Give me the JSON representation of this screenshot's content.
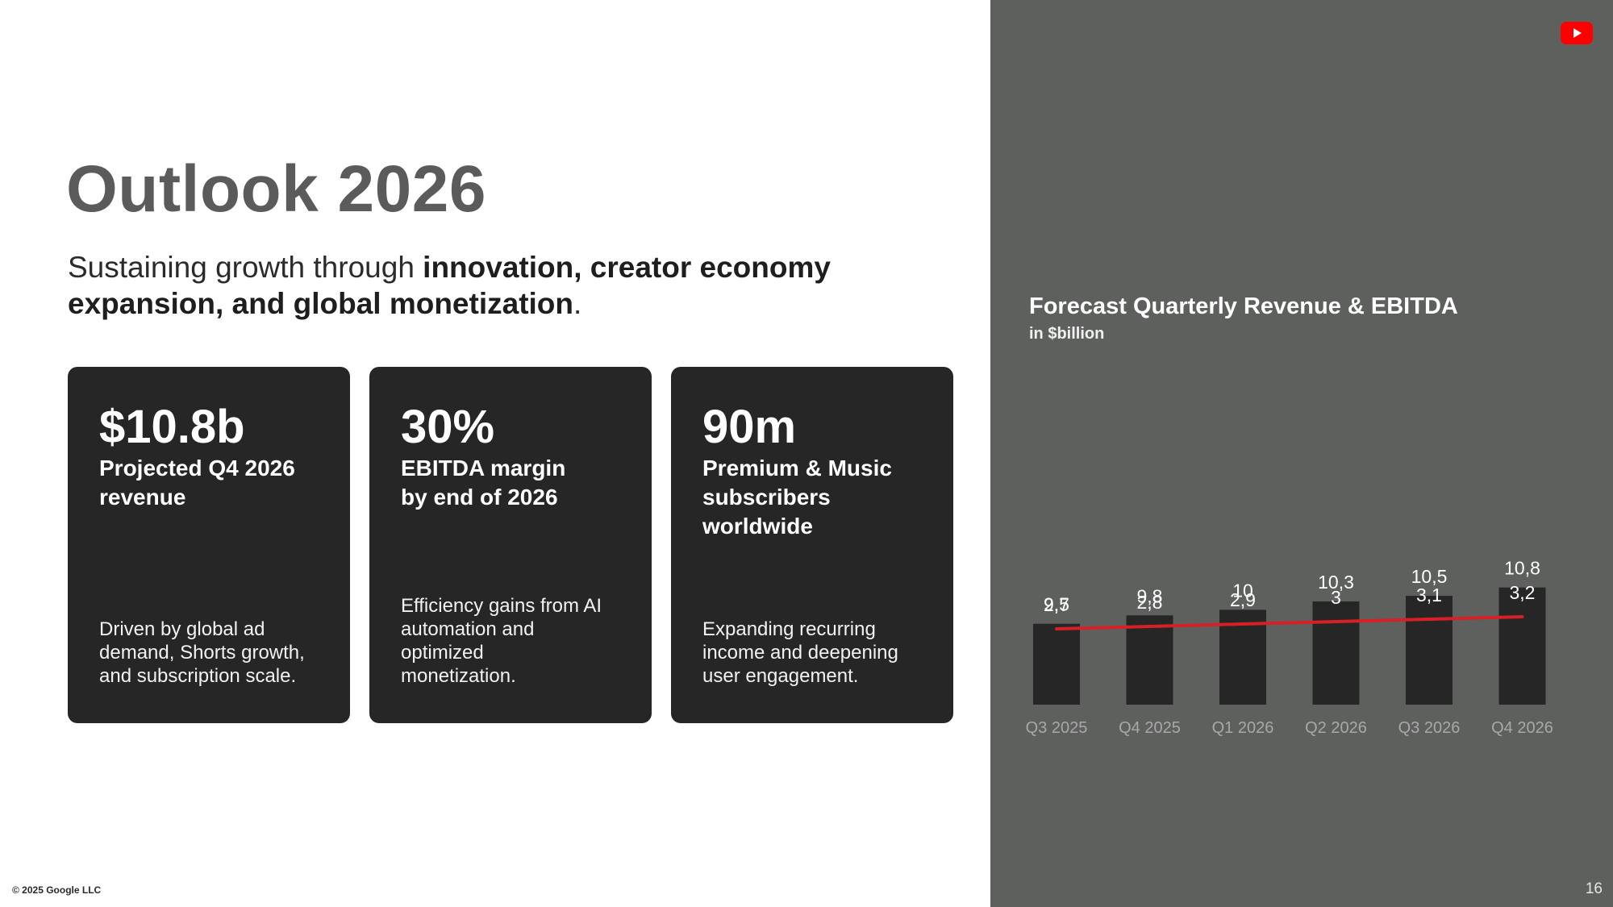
{
  "header": {
    "title": "Outlook 2026",
    "subtitle_plain_1": "Sustaining growth through ",
    "subtitle_bold": "innovation, creator economy expansion, and global monetization",
    "subtitle_plain_2": "."
  },
  "cards": [
    {
      "value": "$10.8b",
      "label": "Projected Q4 2026 revenue",
      "description": "Driven by global ad demand, Shorts growth, and subscription scale."
    },
    {
      "value": "30%",
      "label": "EBITDA margin by end of 2026",
      "description": "Efficiency gains from AI automation and optimized monetization."
    },
    {
      "value": "90m",
      "label": "Premium & Music subscribers worldwide",
      "description": "Expanding recurring income and deepening user engagement."
    }
  ],
  "footer": {
    "copyright": "© 2025 Google LLC",
    "page_number": "16"
  },
  "icons": {
    "logo": "youtube-play-icon"
  },
  "colors": {
    "panel": "#5e605e",
    "bar": "#262626",
    "line": "#d81f26",
    "logo": "#ff0000"
  },
  "chart_data": {
    "type": "bar",
    "title": "Forecast Quarterly Revenue & EBITDA",
    "subtitle": "in $billion",
    "categories": [
      "Q3 2025",
      "Q4 2025",
      "Q1 2026",
      "Q2 2026",
      "Q3 2026",
      "Q4 2026"
    ],
    "series": [
      {
        "type": "bar",
        "values": [
          9.5,
          9.8,
          10,
          10.3,
          10.5,
          10.8
        ],
        "labels": [
          "9,5",
          "9,8",
          "10",
          "10,3",
          "10,5",
          "10,8"
        ]
      },
      {
        "type": "line",
        "values": [
          2.7,
          2.8,
          2.9,
          3,
          3.1,
          3.2
        ],
        "labels": [
          "2,7",
          "2,8",
          "2,9",
          "3",
          "3,1",
          "3,2"
        ]
      }
    ],
    "ylim": [
      0,
      10.8
    ],
    "grid": false,
    "legend": "none"
  }
}
